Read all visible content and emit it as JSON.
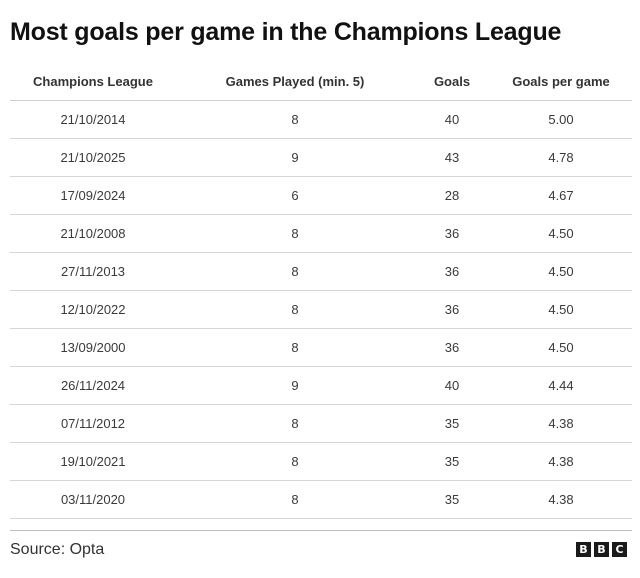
{
  "title": "Most goals per game in the Champions League",
  "chart_data": {
    "type": "table",
    "title": "Most goals per game in the Champions League",
    "columns": [
      "Champions League",
      "Games Played (min. 5)",
      "Goals",
      "Goals per game"
    ],
    "rows": [
      [
        "21/10/2014",
        "8",
        "40",
        "5.00"
      ],
      [
        "21/10/2025",
        "9",
        "43",
        "4.78"
      ],
      [
        "17/09/2024",
        "6",
        "28",
        "4.67"
      ],
      [
        "21/10/2008",
        "8",
        "36",
        "4.50"
      ],
      [
        "27/11/2013",
        "8",
        "36",
        "4.50"
      ],
      [
        "12/10/2022",
        "8",
        "36",
        "4.50"
      ],
      [
        "13/09/2000",
        "8",
        "36",
        "4.50"
      ],
      [
        "26/11/2024",
        "9",
        "40",
        "4.44"
      ],
      [
        "07/11/2012",
        "8",
        "35",
        "4.38"
      ],
      [
        "19/10/2021",
        "8",
        "35",
        "4.38"
      ],
      [
        "03/11/2020",
        "8",
        "35",
        "4.38"
      ]
    ]
  },
  "footer": {
    "source": "Source: Opta",
    "logo_letters": [
      "B",
      "B",
      "C"
    ]
  },
  "colors": {
    "text": "#1a1a1a",
    "rule": "#d6d6d6"
  }
}
